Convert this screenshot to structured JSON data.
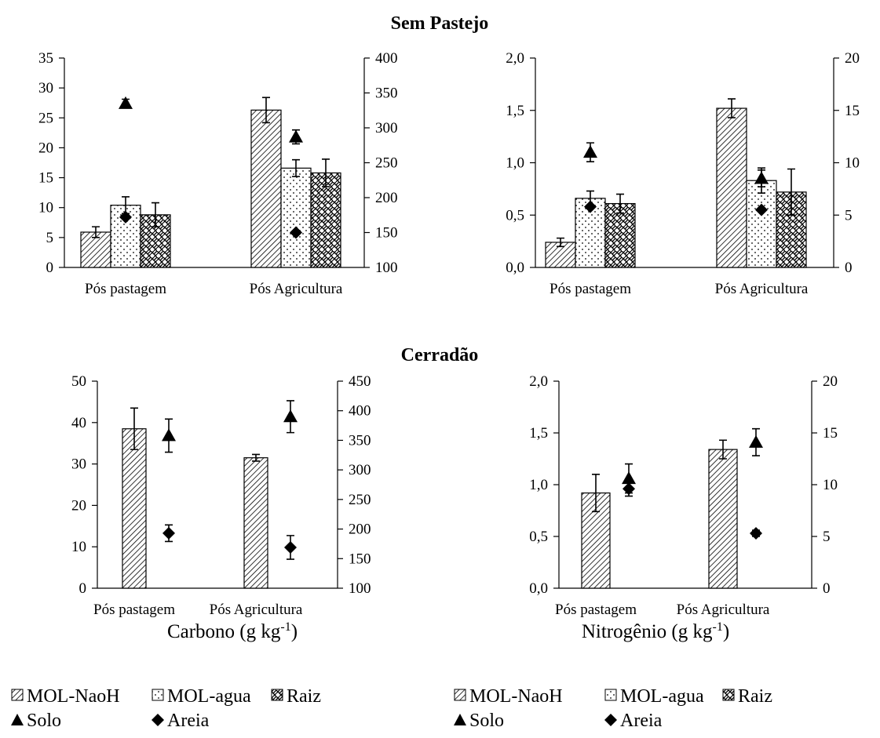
{
  "section_titles": {
    "top": "Sem Pastejo",
    "bottom": "Cerradão"
  },
  "xlabels": {
    "carbono": "Carbono (g kg",
    "nitrogenio": "Nitrogênio (g kg",
    "exp": "-1",
    "close": ")"
  },
  "legend": {
    "items": [
      {
        "label": "MOL-NaoH",
        "marker": "hatch-diagonal"
      },
      {
        "label": "MOL-agua",
        "marker": "dots"
      },
      {
        "label": "Raiz",
        "marker": "crosshatch"
      },
      {
        "label": "Solo",
        "marker": "triangle"
      },
      {
        "label": "Areia",
        "marker": "diamond"
      }
    ]
  },
  "colors": {
    "ink": "#000000",
    "background": "#ffffff"
  },
  "chart_data": [
    {
      "type": "bar",
      "panel": "Sem Pastejo - Carbono",
      "categories": [
        "Pós pastagem",
        "Pós Agricultura"
      ],
      "left_axis": {
        "ylim": [
          0,
          35
        ],
        "ticks": [
          "0",
          "5",
          "10",
          "15",
          "20",
          "25",
          "30",
          "35"
        ]
      },
      "right_axis": {
        "ylim": [
          100,
          400
        ],
        "ticks": [
          "100",
          "150",
          "200",
          "250",
          "300",
          "350",
          "400"
        ]
      },
      "series": [
        {
          "name": "MOL-NaoH",
          "kind": "bar",
          "axis": "left",
          "values": [
            5.9,
            26.3
          ],
          "errors": [
            0.9,
            2.1
          ]
        },
        {
          "name": "MOL-agua",
          "kind": "bar",
          "axis": "left",
          "values": [
            10.4,
            16.6
          ],
          "errors": [
            1.4,
            1.4
          ]
        },
        {
          "name": "Raiz",
          "kind": "bar",
          "axis": "left",
          "values": [
            8.8,
            15.8
          ],
          "errors": [
            2.0,
            2.3
          ]
        },
        {
          "name": "Solo",
          "kind": "marker",
          "axis": "right",
          "values": [
            335,
            287
          ],
          "errors": [
            6,
            10
          ]
        },
        {
          "name": "Areia",
          "kind": "marker",
          "axis": "right",
          "values": [
            172,
            150
          ],
          "errors": [
            0,
            0
          ]
        }
      ]
    },
    {
      "type": "bar",
      "panel": "Sem Pastejo - Nitrogênio",
      "categories": [
        "Pós pastagem",
        "Pós Agricultura"
      ],
      "left_axis": {
        "ylim": [
          0,
          2.0
        ],
        "ticks": [
          "0,0",
          "0,5",
          "1,0",
          "1,5",
          "2,0"
        ]
      },
      "right_axis": {
        "ylim": [
          0,
          20
        ],
        "ticks": [
          "0",
          "5",
          "10",
          "15",
          "20"
        ]
      },
      "series": [
        {
          "name": "MOL-NaoH",
          "kind": "bar",
          "axis": "left",
          "values": [
            0.24,
            1.52
          ],
          "errors": [
            0.04,
            0.09
          ]
        },
        {
          "name": "MOL-agua",
          "kind": "bar",
          "axis": "left",
          "values": [
            0.66,
            0.83
          ],
          "errors": [
            0.07,
            0.12
          ]
        },
        {
          "name": "Raiz",
          "kind": "bar",
          "axis": "left",
          "values": [
            0.61,
            0.72
          ],
          "errors": [
            0.09,
            0.22
          ]
        },
        {
          "name": "Solo",
          "kind": "marker",
          "axis": "right",
          "values": [
            11.0,
            8.5
          ],
          "errors": [
            0.9,
            0.8
          ]
        },
        {
          "name": "Areia",
          "kind": "marker",
          "axis": "right",
          "values": [
            5.8,
            5.5
          ],
          "errors": [
            0,
            0
          ]
        }
      ]
    },
    {
      "type": "bar",
      "panel": "Cerradão - Carbono",
      "categories": [
        "Pós pastagem",
        "Pós Agricultura"
      ],
      "left_axis": {
        "ylim": [
          0,
          50
        ],
        "ticks": [
          "0",
          "10",
          "20",
          "30",
          "40",
          "50"
        ]
      },
      "right_axis": {
        "ylim": [
          100,
          450
        ],
        "ticks": [
          "100",
          "150",
          "200",
          "250",
          "300",
          "350",
          "400",
          "450"
        ]
      },
      "series": [
        {
          "name": "MOL-NaoH",
          "kind": "bar",
          "axis": "left",
          "values": [
            38.5,
            31.5
          ],
          "errors": [
            5.0,
            0.8
          ]
        },
        {
          "name": "Solo",
          "kind": "marker",
          "axis": "right",
          "values": [
            358,
            390
          ],
          "errors": [
            28,
            27
          ]
        },
        {
          "name": "Areia",
          "kind": "marker",
          "axis": "right",
          "values": [
            193,
            169
          ],
          "errors": [
            14,
            20
          ]
        }
      ]
    },
    {
      "type": "bar",
      "panel": "Cerradão - Nitrogênio",
      "categories": [
        "Pós pastagem",
        "Pós Agricultura"
      ],
      "left_axis": {
        "ylim": [
          0,
          2.0
        ],
        "ticks": [
          "0,0",
          "0,5",
          "1,0",
          "1,5",
          "2,0"
        ]
      },
      "right_axis": {
        "ylim": [
          0,
          20
        ],
        "ticks": [
          "0",
          "5",
          "10",
          "15",
          "20"
        ]
      },
      "series": [
        {
          "name": "MOL-NaoH",
          "kind": "bar",
          "axis": "left",
          "values": [
            0.92,
            1.34
          ],
          "errors": [
            0.18,
            0.09
          ]
        },
        {
          "name": "Solo",
          "kind": "marker",
          "axis": "right",
          "values": [
            10.6,
            14.1
          ],
          "errors": [
            1.4,
            1.3
          ]
        },
        {
          "name": "Areia",
          "kind": "marker",
          "axis": "right",
          "values": [
            9.6,
            5.3
          ],
          "errors": [
            0.7,
            0.3
          ]
        }
      ]
    }
  ]
}
